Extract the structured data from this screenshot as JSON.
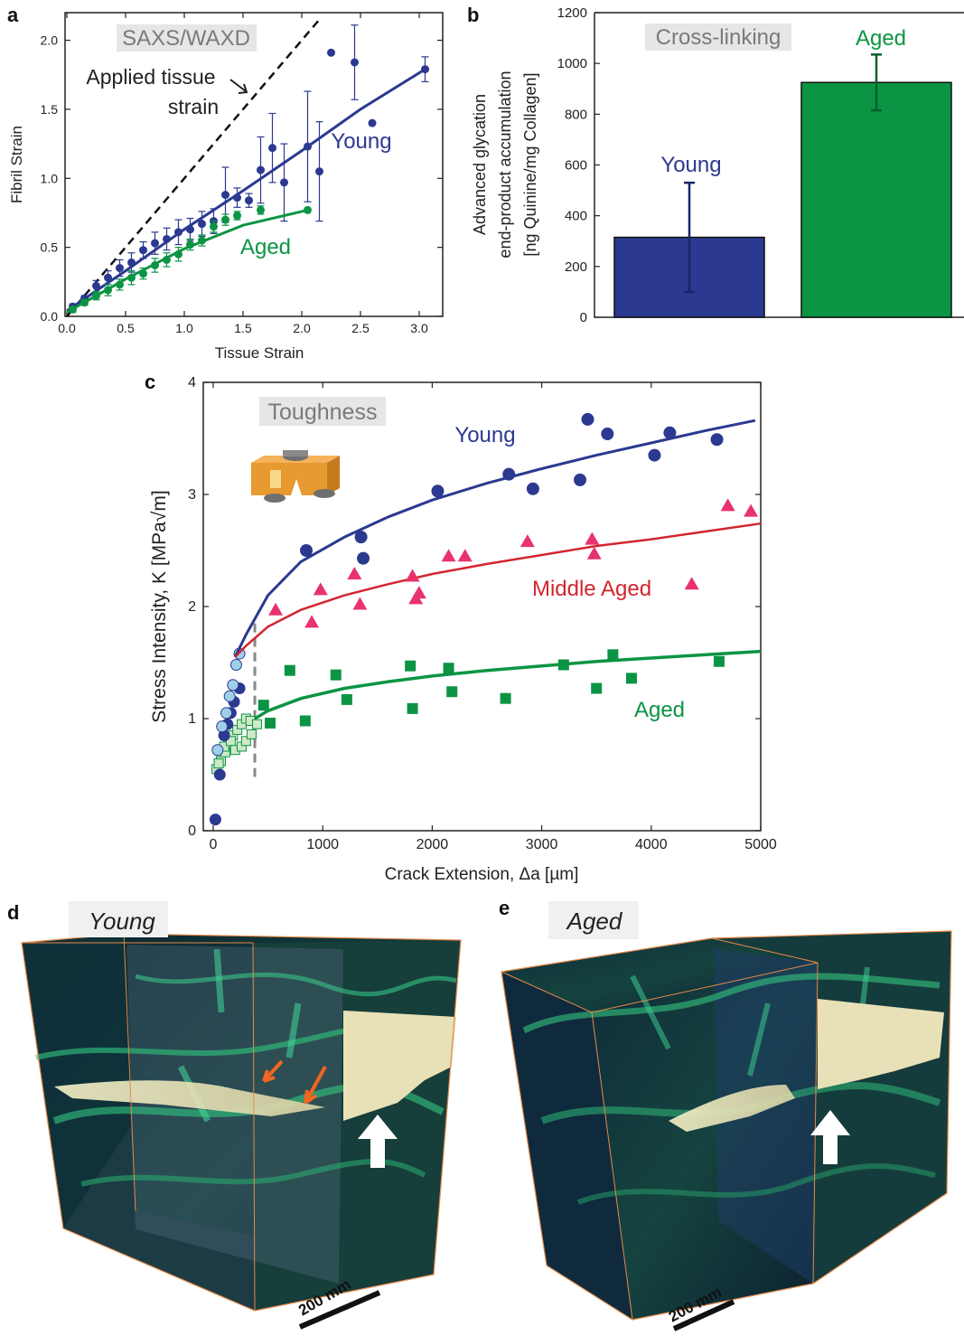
{
  "colors": {
    "young": "#2b3990",
    "young_light": "#9fd0ea",
    "aged": "#0b9444",
    "aged_light": "#cfe9c7",
    "middle": "#e8336d",
    "middle_line": "#d3262f",
    "label_box": "#e6e6e6",
    "arrow_orange": "#f26522"
  },
  "panel_letters": {
    "a": "a",
    "b": "b",
    "c": "c",
    "d": "d",
    "e": "e"
  },
  "chart_data": [
    {
      "id": "a",
      "type": "scatter",
      "title": "SAXS/WAXD",
      "xlabel": "Tissue Strain",
      "ylabel": "Fibril Strain",
      "xlim": [
        0,
        3.2
      ],
      "ylim": [
        0,
        2.2
      ],
      "x_ticks": [
        "0.0",
        "0.5",
        "1.0",
        "1.5",
        "2.0",
        "2.5",
        "3.0"
      ],
      "y_ticks": [
        "0.0",
        "0.5",
        "1.0",
        "1.5",
        "2.0"
      ],
      "annotation": {
        "text_line1": "Applied tissue",
        "text_line2": "strain"
      },
      "reference_line": {
        "name": "Applied tissue strain",
        "style": "dashed",
        "x": [
          0,
          2.15
        ],
        "y": [
          0,
          2.15
        ]
      },
      "series": [
        {
          "name": "Young",
          "points": [
            {
              "x": 0.05,
              "y": 0.07,
              "err": 0.02
            },
            {
              "x": 0.15,
              "y": 0.13,
              "err": 0.02
            },
            {
              "x": 0.25,
              "y": 0.22,
              "err": 0.04
            },
            {
              "x": 0.35,
              "y": 0.28,
              "err": 0.05
            },
            {
              "x": 0.45,
              "y": 0.35,
              "err": 0.06
            },
            {
              "x": 0.55,
              "y": 0.39,
              "err": 0.07
            },
            {
              "x": 0.65,
              "y": 0.48,
              "err": 0.06
            },
            {
              "x": 0.75,
              "y": 0.53,
              "err": 0.08
            },
            {
              "x": 0.85,
              "y": 0.56,
              "err": 0.08
            },
            {
              "x": 0.95,
              "y": 0.61,
              "err": 0.09
            },
            {
              "x": 1.05,
              "y": 0.63,
              "err": 0.08
            },
            {
              "x": 1.15,
              "y": 0.67,
              "err": 0.09
            },
            {
              "x": 1.25,
              "y": 0.69,
              "err": 0.09
            },
            {
              "x": 1.35,
              "y": 0.88,
              "err": 0.2
            },
            {
              "x": 1.45,
              "y": 0.86,
              "err": 0.07
            },
            {
              "x": 1.55,
              "y": 0.84,
              "err": 0.05
            },
            {
              "x": 1.65,
              "y": 1.06,
              "err": 0.24
            },
            {
              "x": 1.75,
              "y": 1.22,
              "err": 0.25
            },
            {
              "x": 1.85,
              "y": 0.97,
              "err": 0.28
            },
            {
              "x": 2.05,
              "y": 1.23,
              "err": 0.4
            },
            {
              "x": 2.15,
              "y": 1.05,
              "err": 0.36
            },
            {
              "x": 2.25,
              "y": 1.91,
              "err": 0
            },
            {
              "x": 2.45,
              "y": 1.84,
              "err": 0.27
            },
            {
              "x": 2.6,
              "y": 1.4,
              "err": 0
            },
            {
              "x": 3.05,
              "y": 1.79,
              "err": 0.09
            }
          ],
          "fit": {
            "x": [
              0,
              0.5,
              1.0,
              1.5,
              2.0,
              2.5,
              3.05
            ],
            "y": [
              0.04,
              0.33,
              0.63,
              0.91,
              1.2,
              1.5,
              1.79
            ]
          }
        },
        {
          "name": "Aged",
          "points": [
            {
              "x": 0.05,
              "y": 0.05,
              "err": 0.02
            },
            {
              "x": 0.15,
              "y": 0.1,
              "err": 0.02
            },
            {
              "x": 0.25,
              "y": 0.15,
              "err": 0.03
            },
            {
              "x": 0.35,
              "y": 0.19,
              "err": 0.04
            },
            {
              "x": 0.45,
              "y": 0.23,
              "err": 0.04
            },
            {
              "x": 0.55,
              "y": 0.28,
              "err": 0.05
            },
            {
              "x": 0.65,
              "y": 0.31,
              "err": 0.04
            },
            {
              "x": 0.75,
              "y": 0.37,
              "err": 0.05
            },
            {
              "x": 0.85,
              "y": 0.41,
              "err": 0.05
            },
            {
              "x": 0.95,
              "y": 0.45,
              "err": 0.05
            },
            {
              "x": 1.05,
              "y": 0.52,
              "err": 0.04
            },
            {
              "x": 1.15,
              "y": 0.55,
              "err": 0.04
            },
            {
              "x": 1.25,
              "y": 0.65,
              "err": 0.04
            },
            {
              "x": 1.35,
              "y": 0.7,
              "err": 0.04
            },
            {
              "x": 1.45,
              "y": 0.73,
              "err": 0.03
            },
            {
              "x": 1.65,
              "y": 0.77,
              "err": 0.03
            },
            {
              "x": 2.05,
              "y": 0.77,
              "err": 0
            }
          ],
          "fit": {
            "x": [
              0,
              0.5,
              1.0,
              1.5,
              2.05
            ],
            "y": [
              0.03,
              0.27,
              0.49,
              0.66,
              0.77
            ]
          }
        }
      ]
    },
    {
      "id": "b",
      "type": "bar",
      "title": "Cross-linking",
      "ylabel_line1": "Advanced glycation",
      "ylabel_line2": "end-product accumulation",
      "ylabel_line3": "[ng Quinine/mg Collagen]",
      "ylim": [
        0,
        1200
      ],
      "y_ticks": [
        "0",
        "200",
        "400",
        "600",
        "800",
        "1000",
        "1200"
      ],
      "categories": [
        "Young",
        "Aged"
      ],
      "values": [
        315,
        925
      ],
      "errors": [
        215,
        110
      ]
    },
    {
      "id": "c",
      "type": "scatter",
      "title": "Toughness",
      "xlabel": "Crack Extension, Δa [µm]",
      "ylabel": "Stress Intensity, K [MPa√m]",
      "xlim": [
        0,
        5000
      ],
      "ylim": [
        0,
        4
      ],
      "x_ticks": [
        "0",
        "1000",
        "2000",
        "3000",
        "4000",
        "5000"
      ],
      "y_ticks": [
        "0",
        "1",
        "2",
        "3",
        "4"
      ],
      "divider_x": 380,
      "series": [
        {
          "name": "Young",
          "marker": "circle",
          "points": [
            [
              850,
              2.5
            ],
            [
              1350,
              2.62
            ],
            [
              1370,
              2.43
            ],
            [
              2050,
              3.03
            ],
            [
              2700,
              3.18
            ],
            [
              2920,
              3.05
            ],
            [
              3350,
              3.13
            ],
            [
              3420,
              3.67
            ],
            [
              3600,
              3.54
            ],
            [
              4030,
              3.35
            ],
            [
              4170,
              3.55
            ],
            [
              4600,
              3.49
            ]
          ],
          "points_initial": [
            [
              20,
              0.1
            ],
            [
              60,
              0.5
            ],
            [
              100,
              0.85
            ],
            [
              130,
              0.95
            ],
            [
              160,
              1.05
            ],
            [
              190,
              1.15
            ],
            [
              240,
              1.27
            ],
            [
              40,
              0.72
            ],
            [
              80,
              0.93
            ],
            [
              120,
              1.05
            ],
            [
              150,
              1.2
            ],
            [
              180,
              1.3
            ],
            [
              210,
              1.48
            ],
            [
              240,
              1.58
            ]
          ],
          "fit": {
            "x": [
              200,
              300,
              500,
              800,
              1200,
              1600,
              2000,
              2500,
              3000,
              3500,
              4000,
              4500,
              4950
            ],
            "y": [
              1.55,
              1.75,
              2.1,
              2.4,
              2.62,
              2.8,
              2.95,
              3.1,
              3.23,
              3.35,
              3.46,
              3.57,
              3.66
            ]
          }
        },
        {
          "name": "Middle Aged",
          "marker": "triangle",
          "points": [
            [
              570,
              1.97
            ],
            [
              900,
              1.86
            ],
            [
              980,
              2.15
            ],
            [
              1290,
              2.29
            ],
            [
              1340,
              2.02
            ],
            [
              1820,
              2.27
            ],
            [
              1850,
              2.07
            ],
            [
              1880,
              2.12
            ],
            [
              2150,
              2.45
            ],
            [
              2300,
              2.45
            ],
            [
              2870,
              2.58
            ],
            [
              3460,
              2.6
            ],
            [
              3480,
              2.47
            ],
            [
              4370,
              2.2
            ],
            [
              4700,
              2.9
            ],
            [
              4910,
              2.85
            ]
          ],
          "fit": {
            "x": [
              200,
              300,
              500,
              800,
              1200,
              1600,
              2000,
              2500,
              3000,
              3500,
              4000,
              4500,
              5000
            ],
            "y": [
              1.55,
              1.65,
              1.82,
              1.97,
              2.1,
              2.2,
              2.29,
              2.38,
              2.46,
              2.54,
              2.6,
              2.67,
              2.74
            ]
          }
        },
        {
          "name": "Aged",
          "marker": "square",
          "points": [
            [
              460,
              1.12
            ],
            [
              520,
              0.96
            ],
            [
              700,
              1.43
            ],
            [
              840,
              0.98
            ],
            [
              1120,
              1.39
            ],
            [
              1220,
              1.17
            ],
            [
              1800,
              1.47
            ],
            [
              1820,
              1.09
            ],
            [
              2150,
              1.45
            ],
            [
              2180,
              1.24
            ],
            [
              2670,
              1.18
            ],
            [
              3200,
              1.48
            ],
            [
              3500,
              1.27
            ],
            [
              3650,
              1.57
            ],
            [
              3820,
              1.36
            ],
            [
              4620,
              1.51
            ]
          ],
          "points_initial": [
            [
              30,
              0.55
            ],
            [
              70,
              0.62
            ],
            [
              110,
              0.7
            ],
            [
              140,
              0.78
            ],
            [
              180,
              0.85
            ],
            [
              220,
              0.9
            ],
            [
              260,
              0.95
            ],
            [
              300,
              1.0
            ],
            [
              340,
              0.98
            ],
            [
              400,
              0.95
            ],
            [
              50,
              0.6
            ],
            [
              100,
              0.75
            ],
            [
              160,
              0.8
            ],
            [
              200,
              0.72
            ],
            [
              260,
              0.75
            ],
            [
              300,
              0.8
            ],
            [
              350,
              0.86
            ]
          ],
          "fit": {
            "x": [
              380,
              500,
              800,
              1200,
              1600,
              2000,
              2500,
              3000,
              3500,
              4000,
              4500,
              5000
            ],
            "y": [
              1.0,
              1.07,
              1.18,
              1.27,
              1.33,
              1.38,
              1.43,
              1.47,
              1.51,
              1.54,
              1.57,
              1.6
            ]
          }
        }
      ]
    }
  ],
  "panel_d": {
    "label": "Young",
    "scale": "200 mm"
  },
  "panel_e": {
    "label": "Aged",
    "scale": "200 mm"
  }
}
